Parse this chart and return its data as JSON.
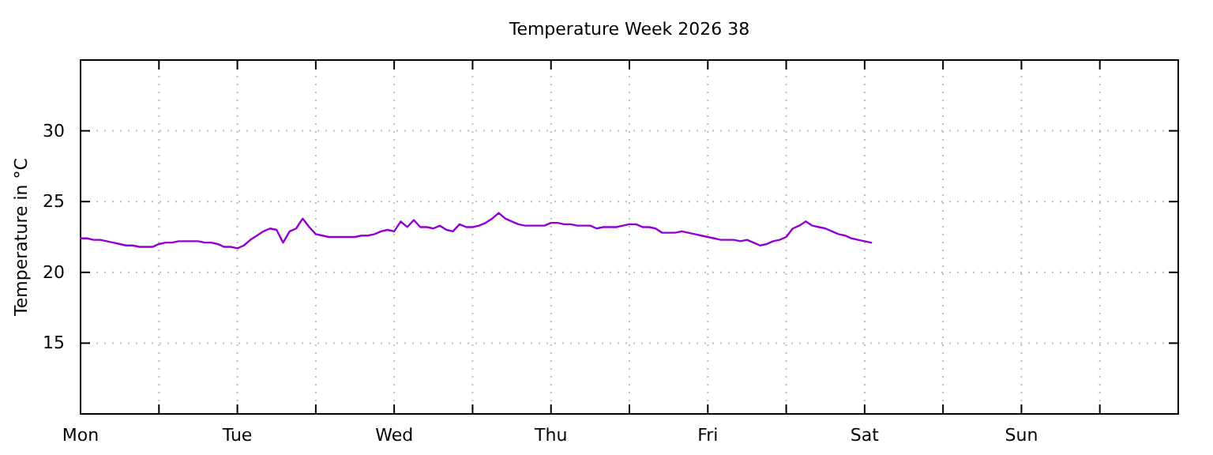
{
  "chart_data": {
    "type": "line",
    "title": "Temperature Week 2026 38",
    "ylabel": "Temperature in °C",
    "ylim": [
      10,
      35
    ],
    "yticks": [
      15,
      20,
      25,
      30
    ],
    "categories": [
      "Mon",
      null,
      null,
      null,
      null,
      null,
      null,
      null,
      null,
      null,
      null,
      null,
      null,
      null,
      null,
      null,
      null,
      null,
      null,
      null,
      null,
      null,
      null,
      null,
      "Tue",
      null,
      null,
      null,
      null,
      null,
      null,
      null,
      null,
      null,
      null,
      null,
      null,
      null,
      null,
      null,
      null,
      null,
      null,
      null,
      null,
      null,
      null,
      null,
      "Wed",
      null,
      null,
      null,
      null,
      null,
      null,
      null,
      null,
      null,
      null,
      null,
      null,
      null,
      null,
      null,
      null,
      null,
      null,
      null,
      null,
      null,
      null,
      null,
      "Thu",
      null,
      null,
      null,
      null,
      null,
      null,
      null,
      null,
      null,
      null,
      null,
      null,
      null,
      null,
      null,
      null,
      null,
      null,
      null,
      null,
      null,
      null,
      null,
      "Fri",
      null,
      null,
      null,
      null,
      null,
      null,
      null,
      null,
      null,
      null,
      null,
      null,
      null,
      null,
      null,
      null,
      null,
      null,
      null,
      null,
      null,
      null,
      null,
      "Sat",
      null,
      null,
      null,
      null,
      null,
      null,
      null,
      null,
      null,
      null,
      null,
      null,
      null,
      null,
      null,
      null,
      null,
      null,
      null,
      null,
      null,
      null,
      null,
      "Sun",
      null,
      null,
      null,
      null,
      null,
      null,
      null,
      null,
      null,
      null,
      null,
      null,
      null,
      null,
      null,
      null,
      null,
      null,
      null,
      null,
      null,
      null,
      null,
      null
    ],
    "grid": true,
    "line_style": "solid",
    "marker": "none",
    "series": [
      {
        "color": "#9400d3",
        "values": [
          22.4,
          22.4,
          22.3,
          22.3,
          22.2,
          22.1,
          22.0,
          21.9,
          21.9,
          21.8,
          21.8,
          21.8,
          22.0,
          22.1,
          22.1,
          22.2,
          22.2,
          22.2,
          22.2,
          22.1,
          22.1,
          22.0,
          21.8,
          21.8,
          21.7,
          21.9,
          22.3,
          22.6,
          22.9,
          23.1,
          23.0,
          22.1,
          22.9,
          23.1,
          23.8,
          23.2,
          22.7,
          22.6,
          22.5,
          22.5,
          22.5,
          22.5,
          22.5,
          22.6,
          22.6,
          22.7,
          22.9,
          23.0,
          22.9,
          23.6,
          23.2,
          23.7,
          23.2,
          23.2,
          23.1,
          23.3,
          23.0,
          22.9,
          23.4,
          23.2,
          23.2,
          23.3,
          23.5,
          23.8,
          24.2,
          23.8,
          23.6,
          23.4,
          23.3,
          23.3,
          23.3,
          23.3,
          23.5,
          23.5,
          23.4,
          23.4,
          23.3,
          23.3,
          23.3,
          23.1,
          23.2,
          23.2,
          23.2,
          23.3,
          23.4,
          23.4,
          23.2,
          23.2,
          23.1,
          22.8,
          22.8,
          22.8,
          22.9,
          22.8,
          22.7,
          22.6,
          22.5,
          22.4,
          22.3,
          22.3,
          22.3,
          22.2,
          22.3,
          22.1,
          21.9,
          22.0,
          22.2,
          22.3,
          22.5,
          23.1,
          23.3,
          23.6,
          23.3,
          23.2,
          23.1,
          22.9,
          22.7,
          22.6,
          22.4,
          22.3,
          22.2,
          22.1,
          null,
          null,
          null,
          null,
          null,
          null,
          null,
          null,
          null,
          null,
          null,
          null,
          null,
          null,
          null,
          null,
          null,
          null,
          null,
          null,
          null,
          null,
          null,
          null,
          null,
          null,
          null,
          null,
          null,
          null,
          null,
          null,
          null,
          null,
          null,
          null,
          null,
          null,
          null,
          null,
          null,
          null,
          null,
          null,
          null,
          null,
          null
        ]
      }
    ]
  }
}
